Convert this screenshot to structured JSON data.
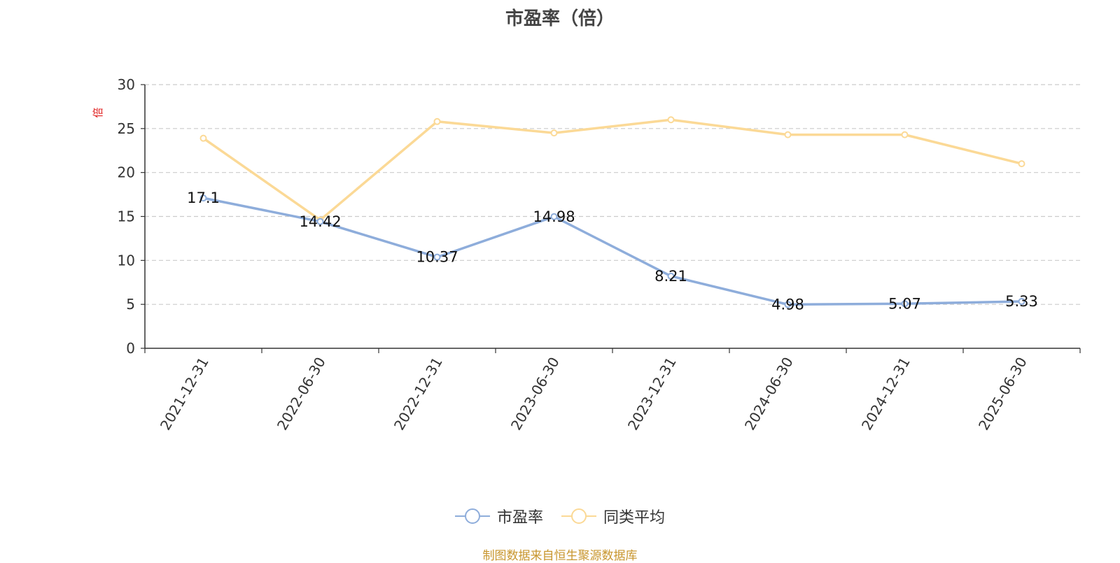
{
  "chart_data": {
    "type": "line",
    "title": "市盈率（倍）",
    "unit_label": "倍",
    "categories": [
      "2021-12-31",
      "2022-06-30",
      "2022-12-31",
      "2023-06-30",
      "2023-12-31",
      "2024-06-30",
      "2024-12-31",
      "2025-06-30"
    ],
    "yticks": [
      "0",
      "5",
      "10",
      "15",
      "20",
      "25",
      "30"
    ],
    "ylim": [
      0,
      30
    ],
    "grid": true,
    "legend_position": "bottom",
    "series": [
      {
        "name": "市盈率",
        "color": "#8eaddb",
        "values": [
          17.1,
          14.42,
          10.37,
          14.98,
          8.21,
          4.98,
          5.07,
          5.33
        ],
        "labels": [
          "17.1",
          "14.42",
          "10.37",
          "14.98",
          "8.21",
          "4.98",
          "5.07",
          "5.33"
        ]
      },
      {
        "name": "同类平均",
        "color": "#fbd996",
        "values": [
          23.9,
          14.6,
          25.8,
          24.5,
          26.0,
          24.3,
          24.3,
          21.0
        ]
      }
    ]
  },
  "legend": {
    "item1": "市盈率",
    "item2": "同类平均"
  },
  "footer": "制图数据来自恒生聚源数据库"
}
